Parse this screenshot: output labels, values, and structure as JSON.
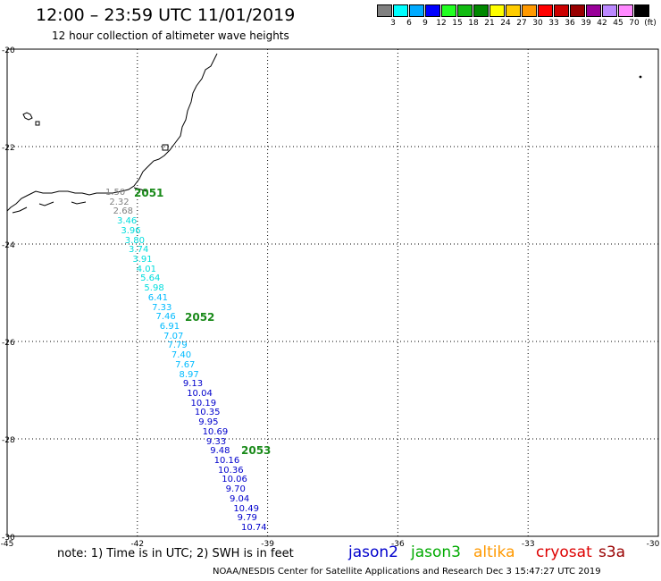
{
  "header": {
    "title": "12:00 – 23:59 UTC 11/01/2019",
    "subtitle": "12 hour collection of altimeter wave heights"
  },
  "legend": {
    "colors": [
      "#808080",
      "#00ffff",
      "#00aaff",
      "#0000ff",
      "#22ff22",
      "#11bb11",
      "#008800",
      "#ffff00",
      "#ffcc00",
      "#ff9900",
      "#ff0000",
      "#cc0000",
      "#990000",
      "#990099",
      "#bb88ff",
      "#ff88ff",
      "#000000"
    ],
    "labels": [
      "3",
      "6",
      "9",
      "12",
      "15",
      "18",
      "21",
      "24",
      "27",
      "30",
      "33",
      "36",
      "39",
      "42",
      "45",
      "70",
      "(ft)"
    ]
  },
  "map": {
    "lat_ticks": [
      "-20",
      "-22",
      "-24",
      "-26",
      "-28",
      "-30"
    ],
    "lon_ticks": [
      "-45",
      "-42",
      "-39",
      "-36",
      "-33",
      "-30"
    ],
    "grid_color": "#000000",
    "passes": [
      {
        "label": "2051",
        "color": "#1a8a1a"
      },
      {
        "label": "2052",
        "color": "#1a8a1a"
      },
      {
        "label": "2053",
        "color": "#1a8a1a"
      }
    ],
    "measurements": [
      {
        "value": "1.50",
        "color": "#808080"
      },
      {
        "value": "2.32",
        "color": "#808080"
      },
      {
        "value": "2.68",
        "color": "#808080"
      },
      {
        "value": "3.46",
        "color": "#00dddd"
      },
      {
        "value": "3.96",
        "color": "#00dddd"
      },
      {
        "value": "3.80",
        "color": "#00dddd"
      },
      {
        "value": "3.74",
        "color": "#00dddd"
      },
      {
        "value": "3.91",
        "color": "#00dddd"
      },
      {
        "value": "4.01",
        "color": "#00dddd"
      },
      {
        "value": "5.64",
        "color": "#00dddd"
      },
      {
        "value": "5.98",
        "color": "#00dddd"
      },
      {
        "value": "6.41",
        "color": "#00bbff"
      },
      {
        "value": "7.33",
        "color": "#00bbff"
      },
      {
        "value": "7.46",
        "color": "#00bbff"
      },
      {
        "value": "6.91",
        "color": "#00bbff"
      },
      {
        "value": "7.07",
        "color": "#00bbff"
      },
      {
        "value": "7.79",
        "color": "#00bbff"
      },
      {
        "value": "7.40",
        "color": "#00bbff"
      },
      {
        "value": "7.67",
        "color": "#00bbff"
      },
      {
        "value": "8.97",
        "color": "#00bbff"
      },
      {
        "value": "9.13",
        "color": "#0000cc"
      },
      {
        "value": "10.04",
        "color": "#0000cc"
      },
      {
        "value": "10.19",
        "color": "#0000cc"
      },
      {
        "value": "10.35",
        "color": "#0000cc"
      },
      {
        "value": "9.95",
        "color": "#0000cc"
      },
      {
        "value": "10.69",
        "color": "#0000cc"
      },
      {
        "value": "9.33",
        "color": "#0000cc"
      },
      {
        "value": "9.48",
        "color": "#0000cc"
      },
      {
        "value": "10.16",
        "color": "#0000cc"
      },
      {
        "value": "10.36",
        "color": "#0000cc"
      },
      {
        "value": "10.06",
        "color": "#0000cc"
      },
      {
        "value": "9.70",
        "color": "#0000cc"
      },
      {
        "value": "9.04",
        "color": "#0000cc"
      },
      {
        "value": "10.49",
        "color": "#0000cc"
      },
      {
        "value": "9.79",
        "color": "#0000cc"
      },
      {
        "value": "10.74",
        "color": "#0000cc"
      }
    ]
  },
  "footer": {
    "note": "note:  1) Time is in UTC;  2) SWH is in feet",
    "satellites": [
      {
        "name": "jason2",
        "color": "#0000cc"
      },
      {
        "name": "jason3",
        "color": "#00aa00"
      },
      {
        "name": "altika",
        "color": "#ff9900"
      },
      {
        "name": "cryosat",
        "color": "#dd0000"
      },
      {
        "name": "s3a",
        "color": "#990000"
      }
    ],
    "credit": "NOAA/NESDIS Center for Satellite Applications and Research     Dec  3 15:47:27 UTC 2019"
  }
}
